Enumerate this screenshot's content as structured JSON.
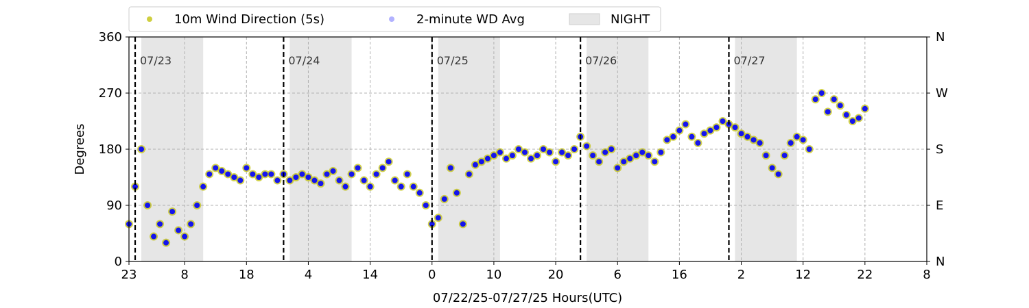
{
  "chart_data": {
    "type": "scatter",
    "xlabel": "07/22/25-07/27/25  Hours(UTC)",
    "ylabel": "Degrees",
    "ylim": [
      0,
      360
    ],
    "xlim": [
      0,
      129
    ],
    "x_ticks": [
      {
        "pos": 0,
        "label": "23"
      },
      {
        "pos": 9,
        "label": "8"
      },
      {
        "pos": 19,
        "label": "18"
      },
      {
        "pos": 29,
        "label": "4"
      },
      {
        "pos": 39,
        "label": "14"
      },
      {
        "pos": 49,
        "label": "0"
      },
      {
        "pos": 59,
        "label": "10"
      },
      {
        "pos": 69,
        "label": "20"
      },
      {
        "pos": 79,
        "label": "6"
      },
      {
        "pos": 89,
        "label": "16"
      },
      {
        "pos": 99,
        "label": "2"
      },
      {
        "pos": 109,
        "label": "12"
      },
      {
        "pos": 119,
        "label": "22"
      },
      {
        "pos": 129,
        "label": "8"
      }
    ],
    "y_ticks": [
      0,
      90,
      180,
      270,
      360
    ],
    "y_right_ticks": [
      {
        "value": 0,
        "label": "N"
      },
      {
        "value": 90,
        "label": "E"
      },
      {
        "value": 180,
        "label": "S"
      },
      {
        "value": 270,
        "label": "W"
      },
      {
        "value": 360,
        "label": "N"
      }
    ],
    "grid": true,
    "legend": {
      "placement": "top-left, above plot",
      "entries": [
        {
          "label": "10m Wind Direction (5s)",
          "color": "#bfbf00"
        },
        {
          "label": "2-minute WD Avg",
          "color": "#0000ff"
        },
        {
          "label": "NIGHT",
          "color": "#e6e6e6"
        }
      ]
    },
    "day_markers": [
      {
        "x": 1,
        "label": "07/23"
      },
      {
        "x": 25,
        "label": "07/24"
      },
      {
        "x": 49,
        "label": "07/25"
      },
      {
        "x": 73,
        "label": "07/26"
      },
      {
        "x": 97,
        "label": "07/27"
      }
    ],
    "night_bands": [
      [
        2,
        12
      ],
      [
        26,
        36
      ],
      [
        50,
        60
      ],
      [
        74,
        84
      ],
      [
        98,
        108
      ]
    ],
    "series": [
      {
        "name": "10m Wind Direction (5s)",
        "color": "#bfbf00",
        "x": [
          0,
          1,
          2,
          3,
          4,
          5,
          6,
          7,
          8,
          9,
          10,
          11,
          12,
          13,
          14,
          15,
          16,
          17,
          18,
          19,
          20,
          21,
          22,
          23,
          24,
          25,
          26,
          27,
          28,
          29,
          30,
          31,
          32,
          33,
          34,
          35,
          36,
          37,
          38,
          39,
          40,
          41,
          42,
          43,
          44,
          45,
          46,
          47,
          48,
          49,
          50,
          51,
          52,
          53,
          54,
          55,
          56,
          57,
          58,
          59,
          60,
          61,
          62,
          63,
          64,
          65,
          66,
          67,
          68,
          69,
          70,
          71,
          72,
          73,
          74,
          75,
          76,
          77,
          78,
          79,
          80,
          81,
          82,
          83,
          84,
          85,
          86,
          87,
          88,
          89,
          90,
          91,
          92,
          93,
          94,
          95,
          96,
          97,
          98,
          99,
          100,
          101,
          102,
          103,
          104,
          105,
          106,
          107,
          108,
          109,
          110,
          111,
          112,
          113,
          114,
          115,
          116,
          117,
          118,
          119
        ],
        "y": [
          60,
          120,
          180,
          90,
          40,
          60,
          30,
          80,
          50,
          40,
          60,
          90,
          120,
          140,
          150,
          145,
          140,
          135,
          130,
          150,
          140,
          135,
          140,
          140,
          130,
          140,
          130,
          135,
          140,
          135,
          130,
          125,
          140,
          145,
          130,
          120,
          140,
          150,
          130,
          120,
          140,
          150,
          160,
          130,
          120,
          140,
          120,
          110,
          90,
          60,
          70,
          100,
          150,
          110,
          60,
          140,
          155,
          160,
          165,
          170,
          175,
          165,
          170,
          180,
          175,
          165,
          170,
          180,
          175,
          160,
          175,
          170,
          180,
          200,
          185,
          170,
          160,
          175,
          180,
          150,
          160,
          165,
          170,
          175,
          170,
          160,
          175,
          195,
          200,
          210,
          220,
          200,
          190,
          205,
          210,
          215,
          225,
          220,
          215,
          205,
          200,
          195,
          190,
          170,
          150,
          140,
          170,
          190,
          200,
          195,
          180,
          260,
          270,
          240,
          260,
          250,
          235,
          225,
          230,
          245
        ]
      },
      {
        "name": "2-minute WD Avg",
        "color": "#0000ff",
        "x": [
          0,
          1,
          2,
          3,
          4,
          5,
          6,
          7,
          8,
          9,
          10,
          11,
          12,
          13,
          14,
          15,
          16,
          17,
          18,
          19,
          20,
          21,
          22,
          23,
          24,
          25,
          26,
          27,
          28,
          29,
          30,
          31,
          32,
          33,
          34,
          35,
          36,
          37,
          38,
          39,
          40,
          41,
          42,
          43,
          44,
          45,
          46,
          47,
          48,
          49,
          50,
          51,
          52,
          53,
          54,
          55,
          56,
          57,
          58,
          59,
          60,
          61,
          62,
          63,
          64,
          65,
          66,
          67,
          68,
          69,
          70,
          71,
          72,
          73,
          74,
          75,
          76,
          77,
          78,
          79,
          80,
          81,
          82,
          83,
          84,
          85,
          86,
          87,
          88,
          89,
          90,
          91,
          92,
          93,
          94,
          95,
          96,
          97,
          98,
          99,
          100,
          101,
          102,
          103,
          104,
          105,
          106,
          107,
          108,
          109,
          110,
          111,
          112,
          113,
          114,
          115,
          116,
          117,
          118,
          119
        ],
        "y": [
          60,
          120,
          180,
          90,
          40,
          60,
          30,
          80,
          50,
          40,
          60,
          90,
          120,
          140,
          150,
          145,
          140,
          135,
          130,
          150,
          140,
          135,
          140,
          140,
          130,
          140,
          130,
          135,
          140,
          135,
          130,
          125,
          140,
          145,
          130,
          120,
          140,
          150,
          130,
          120,
          140,
          150,
          160,
          130,
          120,
          140,
          120,
          110,
          90,
          60,
          70,
          100,
          150,
          110,
          60,
          140,
          155,
          160,
          165,
          170,
          175,
          165,
          170,
          180,
          175,
          165,
          170,
          180,
          175,
          160,
          175,
          170,
          180,
          200,
          185,
          170,
          160,
          175,
          180,
          150,
          160,
          165,
          170,
          175,
          170,
          160,
          175,
          195,
          200,
          210,
          220,
          200,
          190,
          205,
          210,
          215,
          225,
          220,
          215,
          205,
          200,
          195,
          190,
          170,
          150,
          140,
          170,
          190,
          200,
          195,
          180,
          260,
          270,
          240,
          260,
          250,
          235,
          225,
          230,
          245
        ]
      }
    ]
  }
}
